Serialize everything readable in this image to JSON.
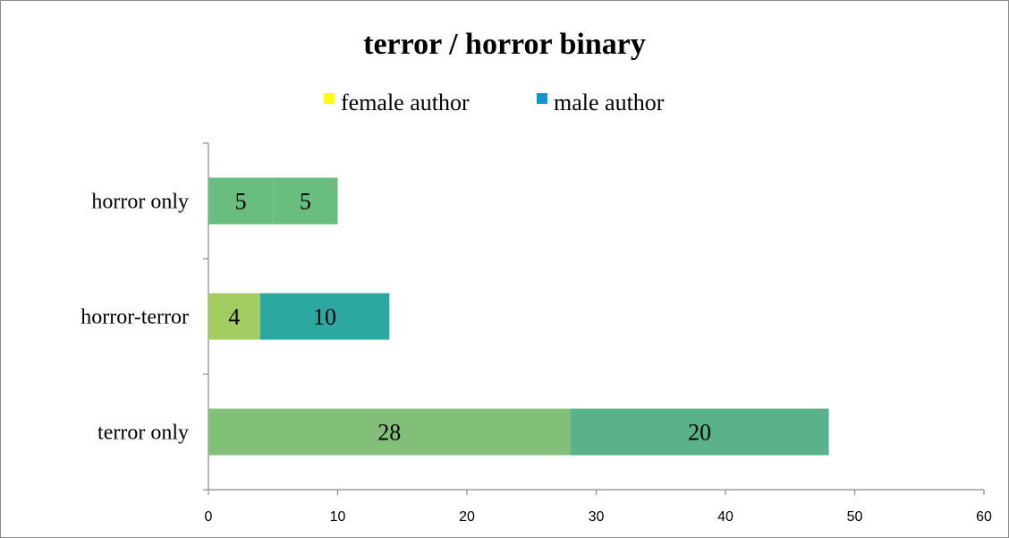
{
  "chart_data": {
    "type": "bar",
    "orientation": "horizontal",
    "stacked": true,
    "title": "terror / horror binary",
    "xlabel": "",
    "ylabel": "",
    "xlim": [
      0,
      60
    ],
    "xticks": [
      "0",
      "10",
      "20",
      "30",
      "40",
      "50",
      "60"
    ],
    "categories": [
      "horror only",
      "horror-terror",
      "terror only"
    ],
    "series": [
      {
        "name": "female author",
        "values": [
          5,
          4,
          28
        ],
        "labels": [
          "5",
          "4",
          "28"
        ]
      },
      {
        "name": "male author",
        "values": [
          5,
          10,
          20
        ],
        "labels": [
          "5",
          "10",
          "20"
        ]
      }
    ],
    "legend_position": "top",
    "legend_colors": [
      "#ffff00",
      "#0f96cc"
    ],
    "bar_colors": [
      [
        "#69bd7f",
        "#a3cc61",
        "#82bf78"
      ],
      [
        "#69bd7f",
        "#2ca8a0",
        "#5ab28c"
      ]
    ],
    "grid": false
  }
}
